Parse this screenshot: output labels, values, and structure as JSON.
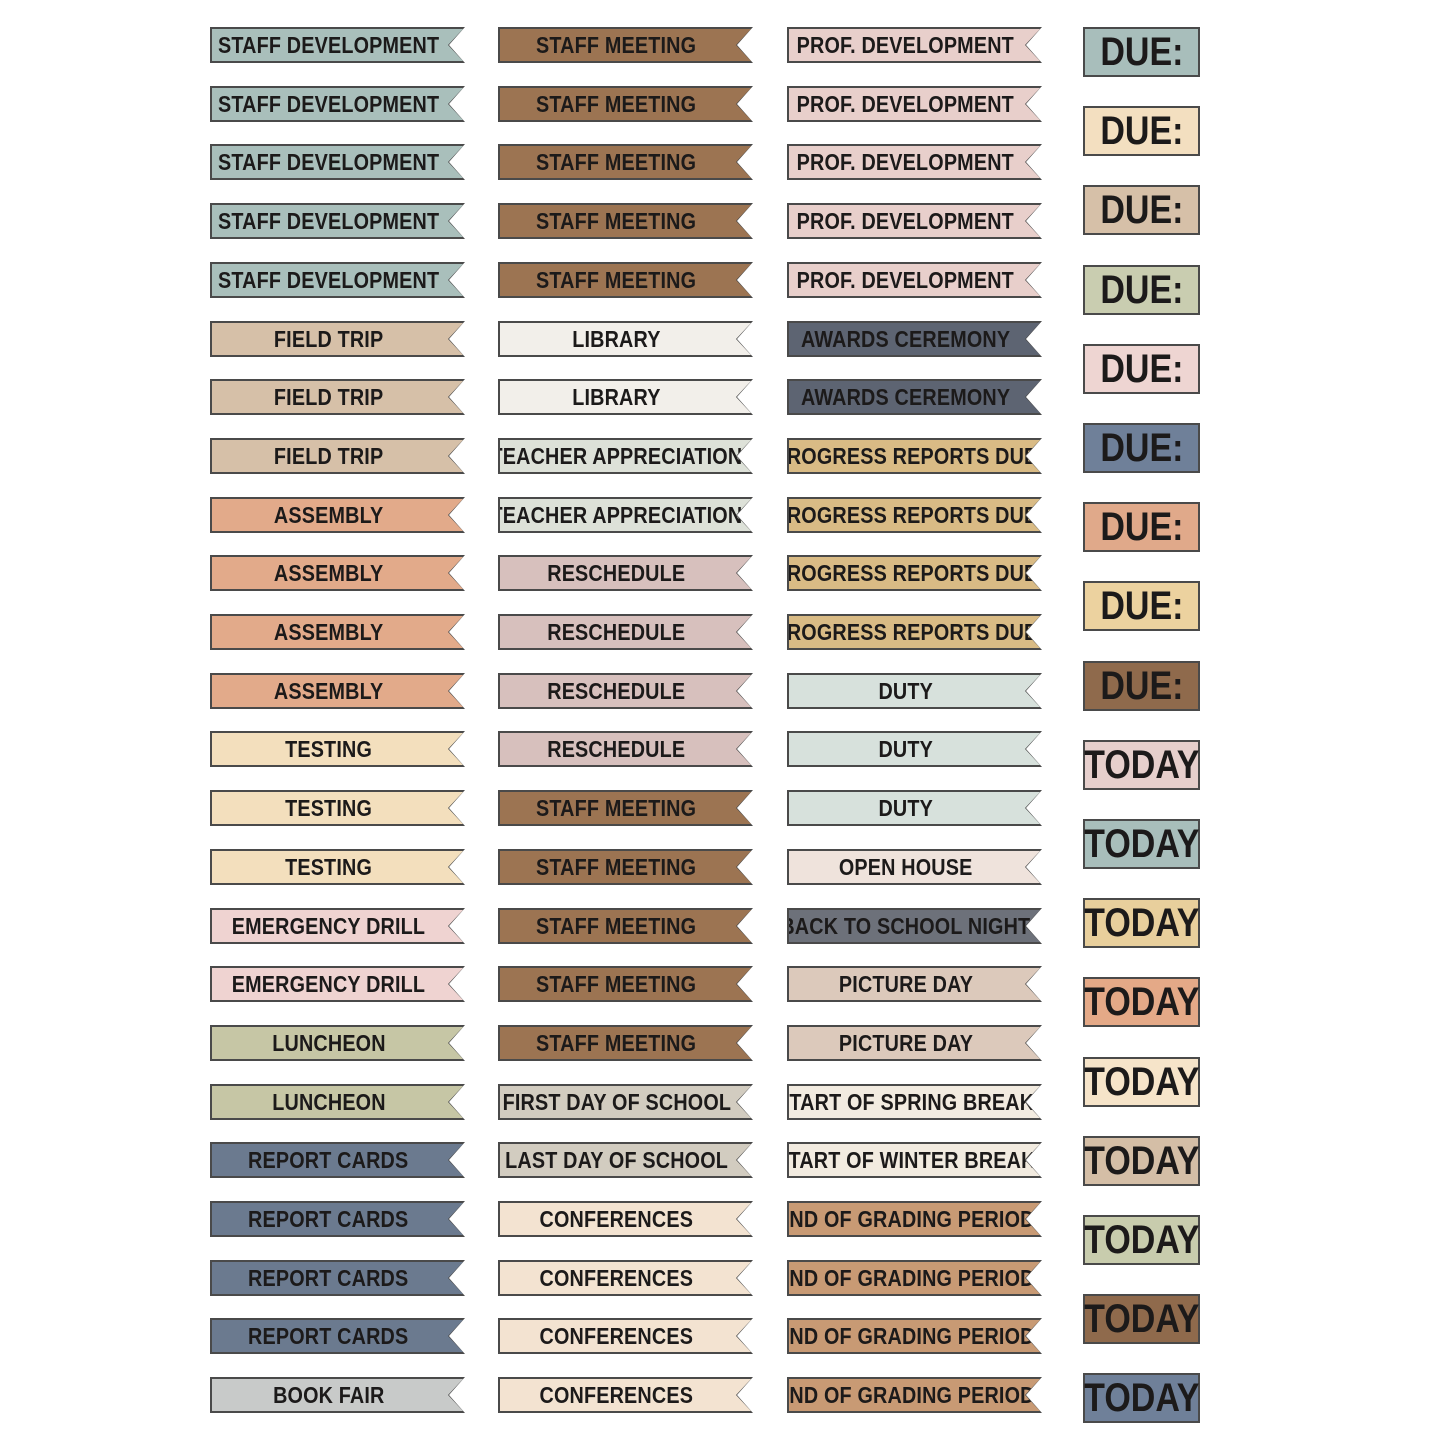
{
  "columns": [
    [
      {
        "label": "STAFF DEVELOPMENT",
        "color": "#a9bfbb"
      },
      {
        "label": "STAFF DEVELOPMENT",
        "color": "#a9bfbb"
      },
      {
        "label": "STAFF DEVELOPMENT",
        "color": "#a9bfbb"
      },
      {
        "label": "STAFF DEVELOPMENT",
        "color": "#a9bfbb"
      },
      {
        "label": "STAFF DEVELOPMENT",
        "color": "#a9bfbb"
      },
      {
        "label": "FIELD TRIP",
        "color": "#d6c0a8"
      },
      {
        "label": "FIELD TRIP",
        "color": "#d6c0a8"
      },
      {
        "label": "FIELD TRIP",
        "color": "#d6c0a8"
      },
      {
        "label": "ASSEMBLY",
        "color": "#e2aa8a"
      },
      {
        "label": "ASSEMBLY",
        "color": "#e2aa8a"
      },
      {
        "label": "ASSEMBLY",
        "color": "#e2aa8a"
      },
      {
        "label": "ASSEMBLY",
        "color": "#e2aa8a"
      },
      {
        "label": "TESTING",
        "color": "#f3dfbd"
      },
      {
        "label": "TESTING",
        "color": "#f3dfbd"
      },
      {
        "label": "TESTING",
        "color": "#f3dfbd"
      },
      {
        "label": "EMERGENCY DRILL",
        "color": "#efd3d1"
      },
      {
        "label": "EMERGENCY DRILL",
        "color": "#efd3d1"
      },
      {
        "label": "LUNCHEON",
        "color": "#c6c6a5"
      },
      {
        "label": "LUNCHEON",
        "color": "#c6c6a5"
      },
      {
        "label": "REPORT CARDS",
        "color": "#6b7a8f"
      },
      {
        "label": "REPORT CARDS",
        "color": "#6b7a8f"
      },
      {
        "label": "REPORT CARDS",
        "color": "#6b7a8f"
      },
      {
        "label": "REPORT CARDS",
        "color": "#6b7a8f"
      },
      {
        "label": "BOOK FAIR",
        "color": "#c8cac9"
      }
    ],
    [
      {
        "label": "STAFF MEETING",
        "color": "#9c7452"
      },
      {
        "label": "STAFF MEETING",
        "color": "#9c7452"
      },
      {
        "label": "STAFF MEETING",
        "color": "#9c7452"
      },
      {
        "label": "STAFF MEETING",
        "color": "#9c7452"
      },
      {
        "label": "STAFF MEETING",
        "color": "#9c7452"
      },
      {
        "label": "LIBRARY",
        "color": "#f2efea"
      },
      {
        "label": "LIBRARY",
        "color": "#f2efea"
      },
      {
        "label": "TEACHER APPRECIATION",
        "color": "#dde1d8"
      },
      {
        "label": "TEACHER APPRECIATION",
        "color": "#dde1d8"
      },
      {
        "label": "RESCHEDULE",
        "color": "#d7c0bd"
      },
      {
        "label": "RESCHEDULE",
        "color": "#d7c0bd"
      },
      {
        "label": "RESCHEDULE",
        "color": "#d7c0bd"
      },
      {
        "label": "RESCHEDULE",
        "color": "#d7c0bd"
      },
      {
        "label": "STAFF MEETING",
        "color": "#9c7452"
      },
      {
        "label": "STAFF MEETING",
        "color": "#9c7452"
      },
      {
        "label": "STAFF MEETING",
        "color": "#9c7452"
      },
      {
        "label": "STAFF MEETING",
        "color": "#9c7452"
      },
      {
        "label": "STAFF MEETING",
        "color": "#9c7452"
      },
      {
        "label": "FIRST DAY OF SCHOOL",
        "color": "#d2ccc0"
      },
      {
        "label": "LAST DAY OF SCHOOL",
        "color": "#d2ccc0"
      },
      {
        "label": "CONFERENCES",
        "color": "#f3e3d1"
      },
      {
        "label": "CONFERENCES",
        "color": "#f3e3d1"
      },
      {
        "label": "CONFERENCES",
        "color": "#f3e3d1"
      },
      {
        "label": "CONFERENCES",
        "color": "#f3e3d1"
      }
    ],
    [
      {
        "label": "PROF. DEVELOPMENT",
        "color": "#e8cfcb"
      },
      {
        "label": "PROF. DEVELOPMENT",
        "color": "#e8cfcb"
      },
      {
        "label": "PROF. DEVELOPMENT",
        "color": "#e8cfcb"
      },
      {
        "label": "PROF. DEVELOPMENT",
        "color": "#e8cfcb"
      },
      {
        "label": "PROF. DEVELOPMENT",
        "color": "#e8cfcb"
      },
      {
        "label": "AWARDS CEREMONY",
        "color": "#5d6472"
      },
      {
        "label": "AWARDS CEREMONY",
        "color": "#5d6472"
      },
      {
        "label": "PROGRESS REPORTS DUE",
        "color": "#d9bb85"
      },
      {
        "label": "PROGRESS REPORTS DUE",
        "color": "#d9bb85"
      },
      {
        "label": "PROGRESS REPORTS DUE",
        "color": "#d9bb85"
      },
      {
        "label": "PROGRESS REPORTS DUE",
        "color": "#d9bb85"
      },
      {
        "label": "DUTY",
        "color": "#d7e1dc"
      },
      {
        "label": "DUTY",
        "color": "#d7e1dc"
      },
      {
        "label": "DUTY",
        "color": "#d7e1dc"
      },
      {
        "label": "OPEN HOUSE",
        "color": "#efe3dc"
      },
      {
        "label": "BACK TO SCHOOL NIGHT",
        "color": "#6d717a"
      },
      {
        "label": "PICTURE DAY",
        "color": "#dcc9bb"
      },
      {
        "label": "PICTURE DAY",
        "color": "#dcc9bb"
      },
      {
        "label": "START OF SPRING BREAK",
        "color": "#f2ebe0"
      },
      {
        "label": "START OF WINTER BREAK",
        "color": "#f2ebe0"
      },
      {
        "label": "END OF GRADING PERIOD",
        "color": "#c89a74"
      },
      {
        "label": "END OF GRADING PERIOD",
        "color": "#c89a74"
      },
      {
        "label": "END OF GRADING PERIOD",
        "color": "#c89a74"
      },
      {
        "label": "END OF GRADING PERIOD",
        "color": "#c89a74"
      }
    ]
  ],
  "boxes": [
    {
      "label": "DUE:",
      "color": "#a8bebb"
    },
    {
      "label": "DUE:",
      "color": "#f3dfc0"
    },
    {
      "label": "DUE:",
      "color": "#d6c0a8"
    },
    {
      "label": "DUE:",
      "color": "#c9cdb0"
    },
    {
      "label": "DUE:",
      "color": "#eed5d2"
    },
    {
      "label": "DUE:",
      "color": "#6f8099"
    },
    {
      "label": "DUE:",
      "color": "#e0a98a"
    },
    {
      "label": "DUE:",
      "color": "#ecd29f"
    },
    {
      "label": "DUE:",
      "color": "#8f6a4c"
    },
    {
      "label": "TODAY",
      "color": "#e6cfcc"
    },
    {
      "label": "TODAY",
      "color": "#a8bebb"
    },
    {
      "label": "TODAY",
      "color": "#e8cf9c"
    },
    {
      "label": "TODAY",
      "color": "#e4a987"
    },
    {
      "label": "TODAY",
      "color": "#f6e4c9"
    },
    {
      "label": "TODAY",
      "color": "#d4bea6"
    },
    {
      "label": "TODAY",
      "color": "#c8ccad"
    },
    {
      "label": "TODAY",
      "color": "#8f6a4c"
    },
    {
      "label": "TODAY",
      "color": "#6f8099"
    }
  ]
}
